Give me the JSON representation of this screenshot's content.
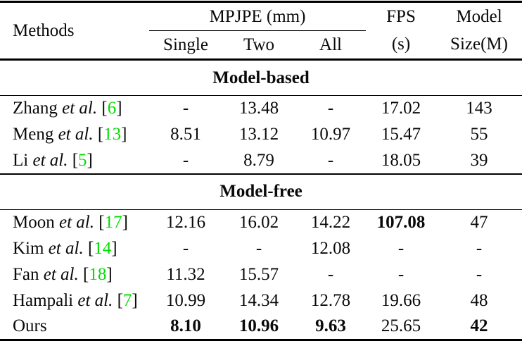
{
  "page": {
    "background_color": "#ffffff",
    "text_color": "#0a0a0a",
    "citation_color": "#00dd00"
  },
  "header": {
    "methods": "Methods",
    "mpjpe_group": "MPJPE (mm)",
    "sub_columns": [
      "Single",
      "Two",
      "All"
    ],
    "fps": {
      "line1": "FPS",
      "line2": "(s)"
    },
    "model_size": {
      "line1": "Model",
      "line2": "Size(M)"
    }
  },
  "columns_keys": [
    "single",
    "two",
    "all",
    "fps",
    "model-size"
  ],
  "sections": [
    {
      "title": "Model-based",
      "rows": [
        {
          "method": "Zhang",
          "etal": "et al.",
          "ref": "6",
          "values": [
            "-",
            "13.48",
            "-",
            "17.02",
            "143"
          ],
          "bold": [
            false,
            false,
            false,
            false,
            false
          ]
        },
        {
          "method": "Meng",
          "etal": "et al.",
          "ref": "13",
          "values": [
            "8.51",
            "13.12",
            "10.97",
            "15.47",
            "55"
          ],
          "bold": [
            false,
            false,
            false,
            false,
            false
          ]
        },
        {
          "method": "Li",
          "etal": "et al.",
          "ref": "5",
          "values": [
            "-",
            "8.79",
            "-",
            "18.05",
            "39"
          ],
          "bold": [
            false,
            false,
            false,
            false,
            false
          ]
        }
      ]
    },
    {
      "title": "Model-free",
      "rows": [
        {
          "method": "Moon",
          "etal": "et al.",
          "ref": "17",
          "values": [
            "12.16",
            "16.02",
            "14.22",
            "107.08",
            "47"
          ],
          "bold": [
            false,
            false,
            false,
            true,
            false
          ]
        },
        {
          "method": "Kim",
          "etal": "et al.",
          "ref": "14",
          "values": [
            "-",
            "-",
            "12.08",
            "-",
            "-"
          ],
          "bold": [
            false,
            false,
            false,
            false,
            false
          ]
        },
        {
          "method": "Fan",
          "etal": "et al.",
          "ref": "18",
          "values": [
            "11.32",
            "15.57",
            "-",
            "-",
            "-"
          ],
          "bold": [
            false,
            false,
            false,
            false,
            false
          ]
        },
        {
          "method": "Hampali",
          "etal": "et al.",
          "ref": "7",
          "values": [
            "10.99",
            "14.34",
            "12.78",
            "19.66",
            "48"
          ],
          "bold": [
            false,
            false,
            false,
            false,
            false
          ]
        },
        {
          "method": "Ours",
          "etal": null,
          "ref": null,
          "values": [
            "8.10",
            "10.96",
            "9.63",
            "25.65",
            "42"
          ],
          "bold": [
            true,
            true,
            true,
            false,
            true
          ]
        }
      ]
    }
  ]
}
